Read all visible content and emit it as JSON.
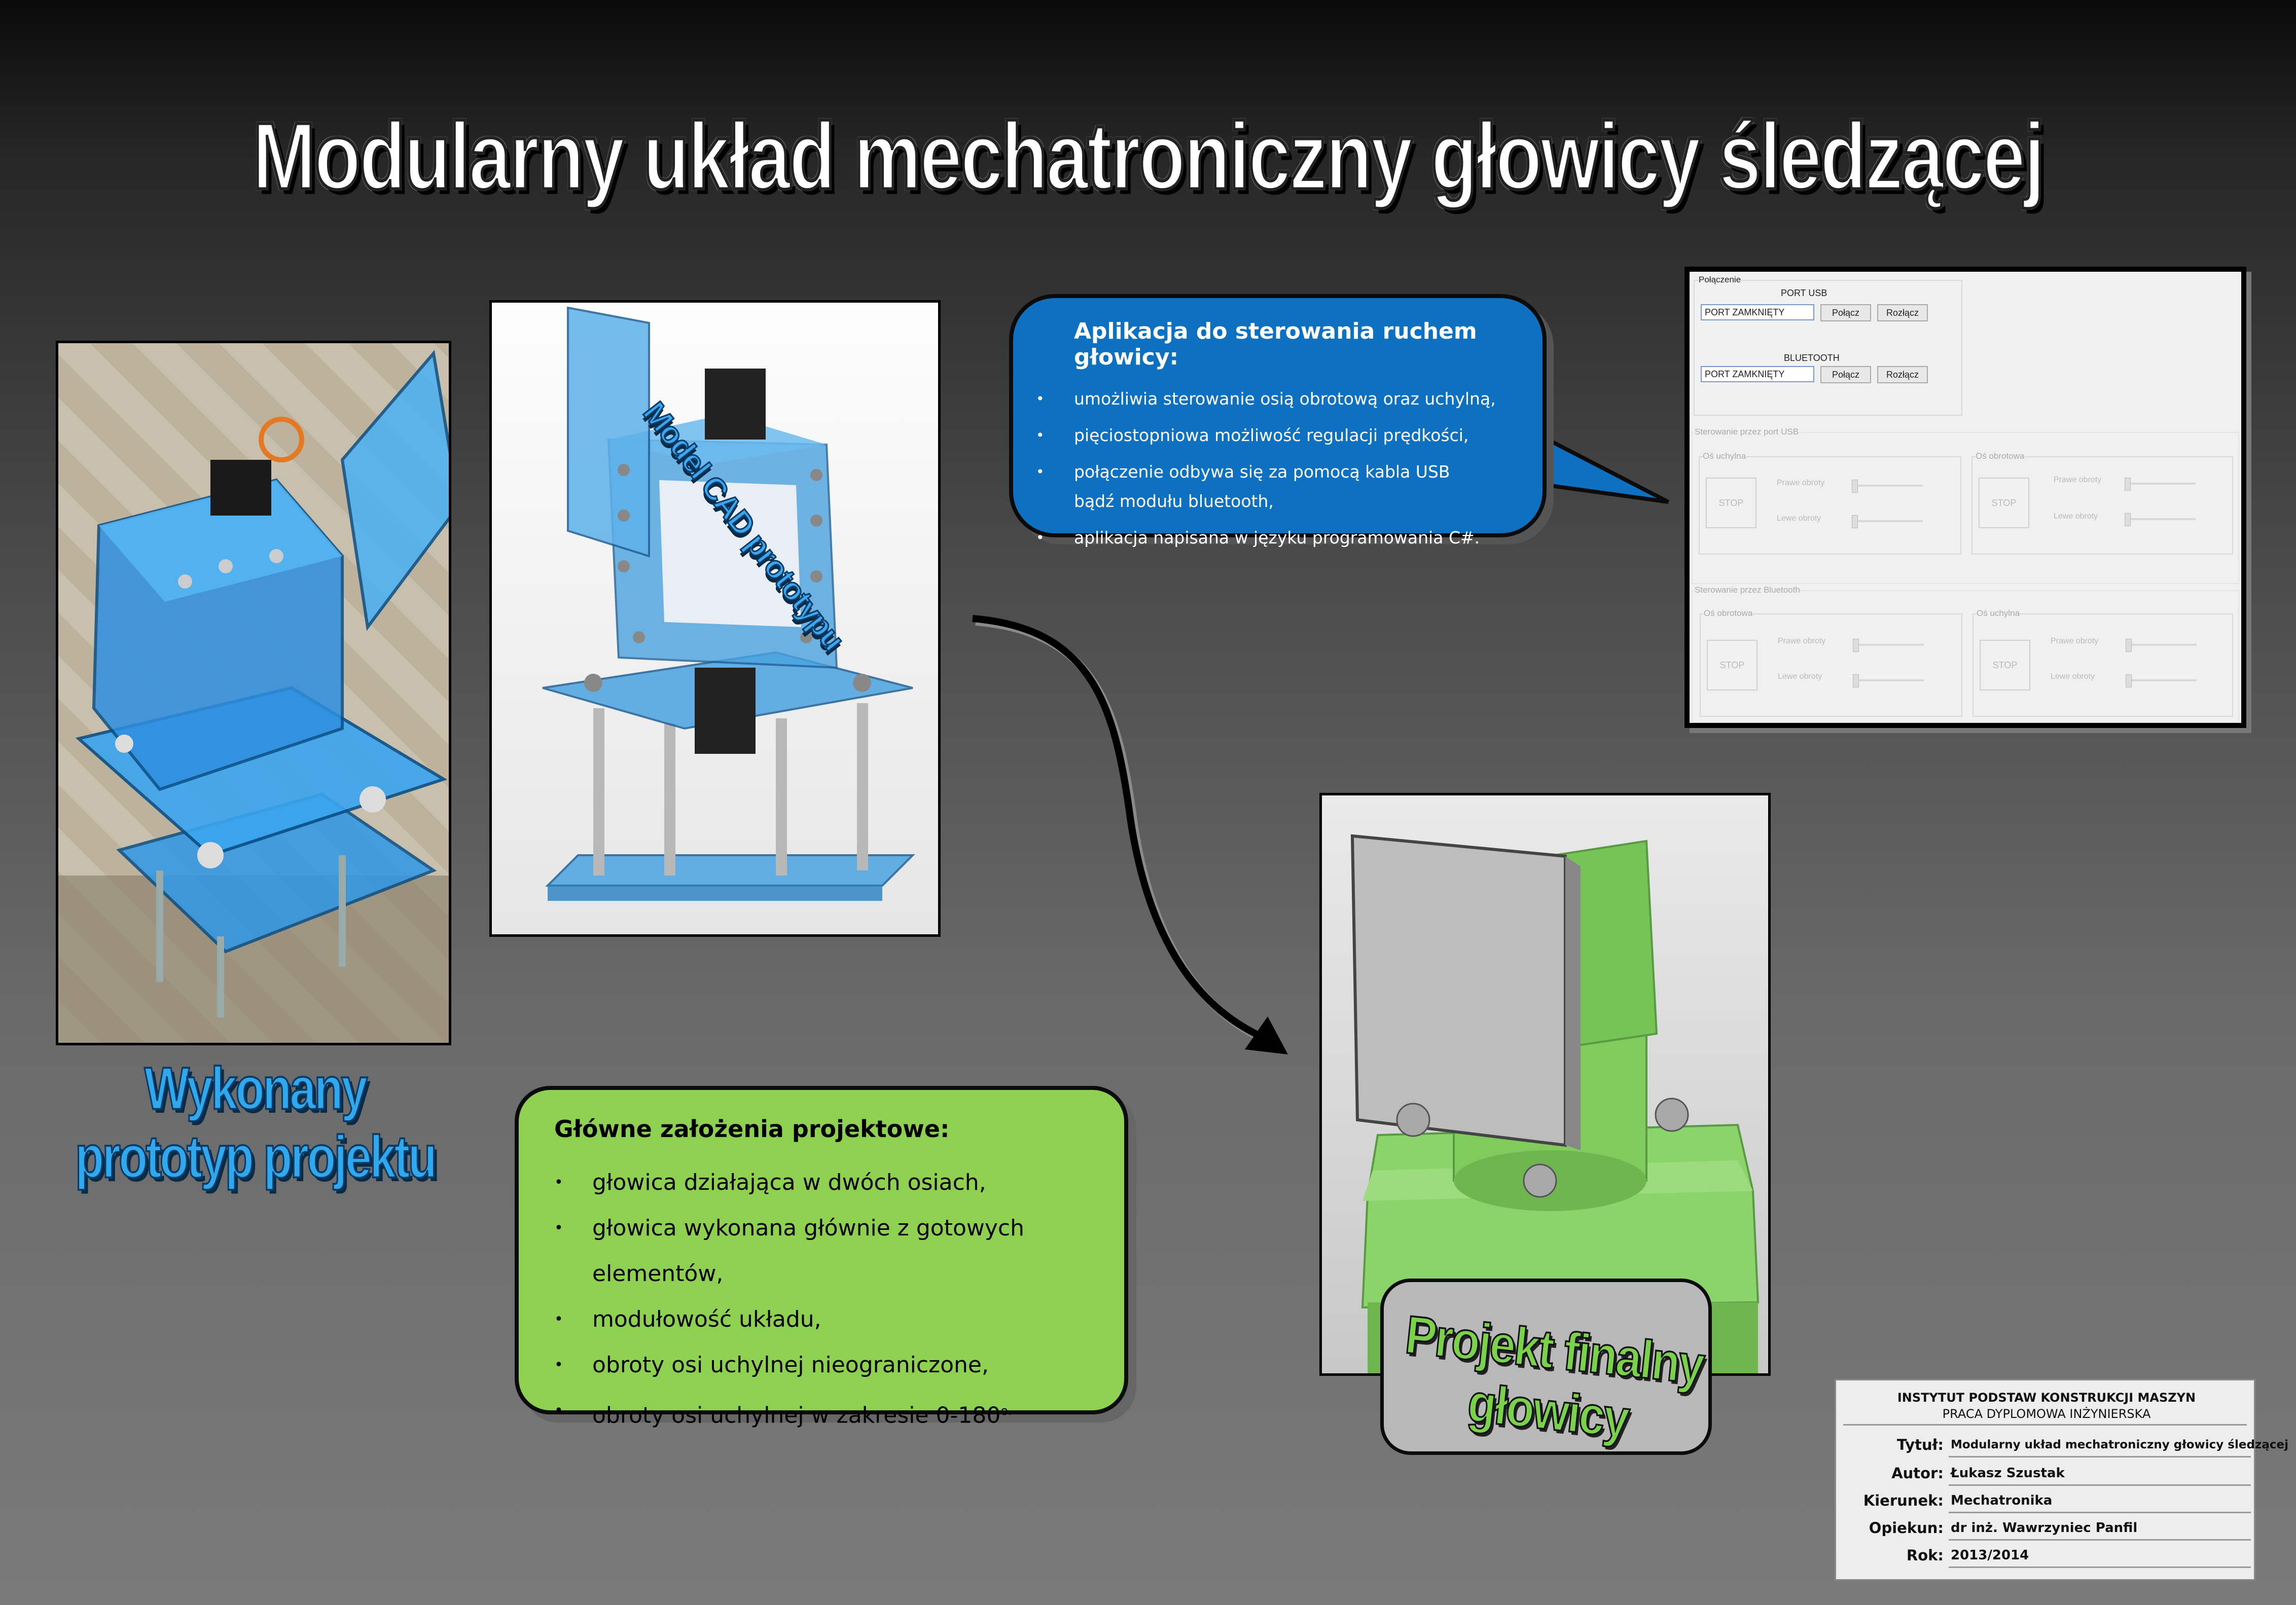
{
  "poster": {
    "title": "Modularny układ mechatroniczny głowicy śledzącej",
    "cad_label": "Model CAD prototypu",
    "prototype_label": "Wykonany prototyp projektu",
    "final_label": "Projekt finalny głowicy"
  },
  "app_callout": {
    "heading": "Aplikacja do sterowania ruchem głowicy:",
    "items": [
      "umożliwia sterowanie osią obrotową oraz uchylną,",
      "pięciostopniowa możliwość regulacji prędkości,",
      "połączenie odbywa się za pomocą kabla USB bądź modułu bluetooth,",
      "aplikacja napisana w języku programowania C#."
    ]
  },
  "goals_callout": {
    "heading": "Główne założenia projektowe:",
    "items": [
      "głowica działająca w dwóch osiach,",
      "głowica wykonana głównie z gotowych elementów,",
      "modułowość układu,",
      "obroty osi uchylnej nieograniczone,",
      "obroty osi uchylnej w zakresie 0-180"
    ],
    "degree_suffix": "o."
  },
  "app_window": {
    "connection_group": "Połączenie",
    "usb_label": "PORT USB",
    "usb_status": "PORT ZAMKNIĘTY",
    "bt_label": "BLUETOOTH",
    "bt_status": "PORT ZAMKNIĘTY",
    "connect_button": "Połącz",
    "disconnect_button": "Rozłącz",
    "usb_control_group": "Sterowanie przez port USB",
    "bt_control_group": "Sterowanie przez Bluetooth",
    "tilt_axis": "Oś uchylna",
    "rotation_axis": "Oś obrotowa",
    "stop_button": "STOP",
    "right_rotation": "Prawe obroty",
    "left_rotation": "Lewe obroty"
  },
  "title_block": {
    "institute": "INSTYTUT PODSTAW KONSTRUKCJI MASZYN",
    "thesis_type": "PRACA DYPLOMOWA INŻYNIERSKA",
    "rows": [
      {
        "label": "Tytuł:",
        "value": "Modularny układ mechatroniczny głowicy śledzącej"
      },
      {
        "label": "Autor:",
        "value": "Łukasz Szustak"
      },
      {
        "label": "Kierunek:",
        "value": "Mechatronika"
      },
      {
        "label": "Opiekun:",
        "value": "dr inż. Wawrzyniec Panfil"
      },
      {
        "label": "Rok:",
        "value": "2013/2014"
      }
    ]
  },
  "colors": {
    "callout_blue": "#0e70c0",
    "callout_green": "#8ed150",
    "wordart_blue": "#2fa8ee",
    "wordart_green": "#7ad24a"
  }
}
